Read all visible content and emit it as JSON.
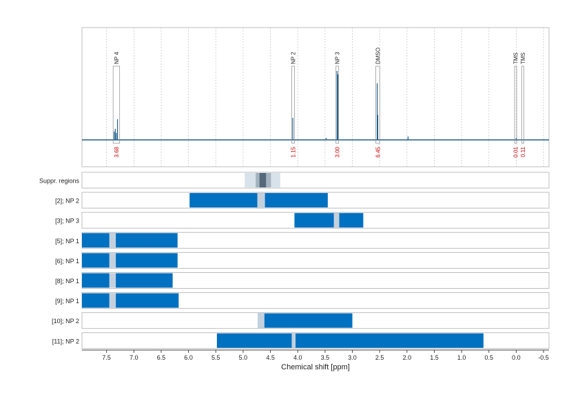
{
  "chart_data": {
    "type": "spectrum-with-range-bars",
    "xlabel": "Chemical shift [ppm]",
    "x_reversed": true,
    "xlim": [
      7.95,
      -0.6
    ],
    "x_ticks": [
      7.5,
      7.0,
      6.5,
      6.0,
      5.5,
      5.0,
      4.5,
      4.0,
      3.5,
      3.0,
      2.5,
      2.0,
      1.5,
      1.0,
      0.5,
      0.0,
      -0.5
    ],
    "x_tick_labels": [
      "7.5",
      "7.0",
      "6.5",
      "6.0",
      "5.5",
      "5.0",
      "4.5",
      "4.0",
      "3.5",
      "3.0",
      "2.5",
      "2.0",
      "1.5",
      "1.0",
      "0.5",
      "0.0",
      "-0.5"
    ],
    "grid": "vertical dotted",
    "colors": {
      "spectrum": "#1f5f8b",
      "bar": "#0070c0",
      "gap": "#c3d1de",
      "integral": "#cc0000",
      "frame": "#bdbdbd",
      "suppr_light": "#d8e2ea",
      "suppr_mid": "#a4b3c0",
      "suppr_dark": "#55697a"
    },
    "peaks": [
      {
        "label": "NP 4",
        "x_from": 7.38,
        "x_to": 7.26,
        "integral": "3.68"
      },
      {
        "label": "NP 2",
        "x_from": 4.11,
        "x_to": 4.06,
        "integral": "1.15"
      },
      {
        "label": "NP 3",
        "x_from": 3.3,
        "x_to": 3.25,
        "integral": "3.00"
      },
      {
        "label": "DMSO",
        "x_from": 2.57,
        "x_to": 2.5,
        "integral": "6.45"
      },
      {
        "label": "TMS",
        "x_from": 0.03,
        "x_to": 0.0,
        "integral": "0.01"
      },
      {
        "label": "TMS",
        "x_from": -0.1,
        "x_to": -0.13,
        "integral": "0.11"
      }
    ],
    "spectrum_lines": [
      {
        "x": 7.36,
        "h": 0.12
      },
      {
        "x": 7.34,
        "h": 0.16
      },
      {
        "x": 7.32,
        "h": 0.1
      },
      {
        "x": 7.3,
        "h": 0.3
      },
      {
        "x": 4.09,
        "h": 0.32
      },
      {
        "x": 3.28,
        "h": 1.0
      },
      {
        "x": 3.265,
        "h": 0.95
      },
      {
        "x": 2.545,
        "h": 0.82
      },
      {
        "x": 2.535,
        "h": 0.36
      },
      {
        "x": 1.98,
        "h": 0.05
      },
      {
        "x": 3.48,
        "h": 0.03
      },
      {
        "x": 0.0,
        "h": 0.03
      }
    ],
    "rows": [
      {
        "label": "Suppr. regions",
        "type": "suppression",
        "segments": [
          {
            "from": 4.97,
            "to": 4.32,
            "shade": "light"
          },
          {
            "from": 4.77,
            "to": 4.49,
            "shade": "mid"
          },
          {
            "from": 4.7,
            "to": 4.58,
            "shade": "dark"
          }
        ]
      },
      {
        "label": "[2]; NP 2",
        "segments": [
          {
            "from": 5.98,
            "to": 3.45
          }
        ],
        "gaps": [
          {
            "from": 4.74,
            "to": 4.6
          }
        ]
      },
      {
        "label": "[3]; NP 3",
        "segments": [
          {
            "from": 4.06,
            "to": 2.8
          }
        ],
        "gaps": [
          {
            "from": 3.34,
            "to": 3.24
          }
        ]
      },
      {
        "label": "[5]; NP 1",
        "segments": [
          {
            "from": 7.95,
            "to": 6.2
          }
        ],
        "gaps": [
          {
            "from": 7.45,
            "to": 7.33
          }
        ]
      },
      {
        "label": "[6]; NP 1",
        "segments": [
          {
            "from": 7.95,
            "to": 6.2
          }
        ],
        "gaps": [
          {
            "from": 7.45,
            "to": 7.33
          }
        ]
      },
      {
        "label": "[8]; NP 1",
        "segments": [
          {
            "from": 7.95,
            "to": 6.29
          }
        ],
        "gaps": [
          {
            "from": 7.45,
            "to": 7.33
          }
        ]
      },
      {
        "label": "[9]; NP 1",
        "segments": [
          {
            "from": 7.95,
            "to": 6.18
          }
        ],
        "gaps": [
          {
            "from": 7.45,
            "to": 7.33
          }
        ]
      },
      {
        "label": "[10]; NP 2",
        "segments": [
          {
            "from": 4.73,
            "to": 3.0
          }
        ],
        "gaps": [
          {
            "from": 4.73,
            "to": 4.61
          }
        ]
      },
      {
        "label": "[11]; NP 2",
        "segments": [
          {
            "from": 5.48,
            "to": 0.6
          }
        ],
        "gaps": [
          {
            "from": 4.11,
            "to": 4.04
          }
        ]
      }
    ]
  }
}
